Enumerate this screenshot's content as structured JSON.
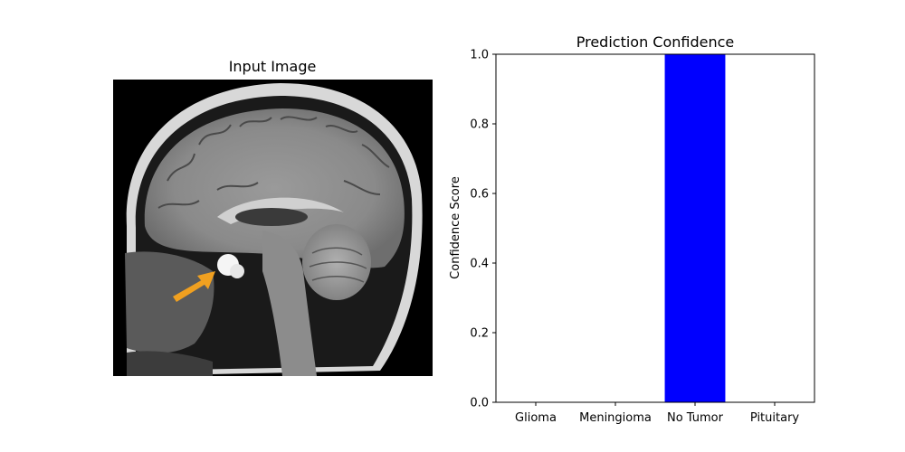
{
  "image_panel": {
    "title": "Input Image"
  },
  "chart_data": {
    "type": "bar",
    "title": "Prediction Confidence",
    "xlabel": "",
    "ylabel": "Confidence Score",
    "categories": [
      "Glioma",
      "Meningioma",
      "No Tumor",
      "Pituitary"
    ],
    "values": [
      0.0,
      0.0,
      1.0,
      0.0
    ],
    "ylim": [
      0,
      1.0
    ],
    "yticks": [
      0.0,
      0.2,
      0.4,
      0.6,
      0.8,
      1.0
    ],
    "ytick_labels": [
      "0.0",
      "0.2",
      "0.4",
      "0.6",
      "0.8",
      "1.0"
    ],
    "bar_color": "#0000ff",
    "grid": false
  },
  "colors": {
    "arrow": "#f0a020",
    "image_background": "#000000"
  }
}
